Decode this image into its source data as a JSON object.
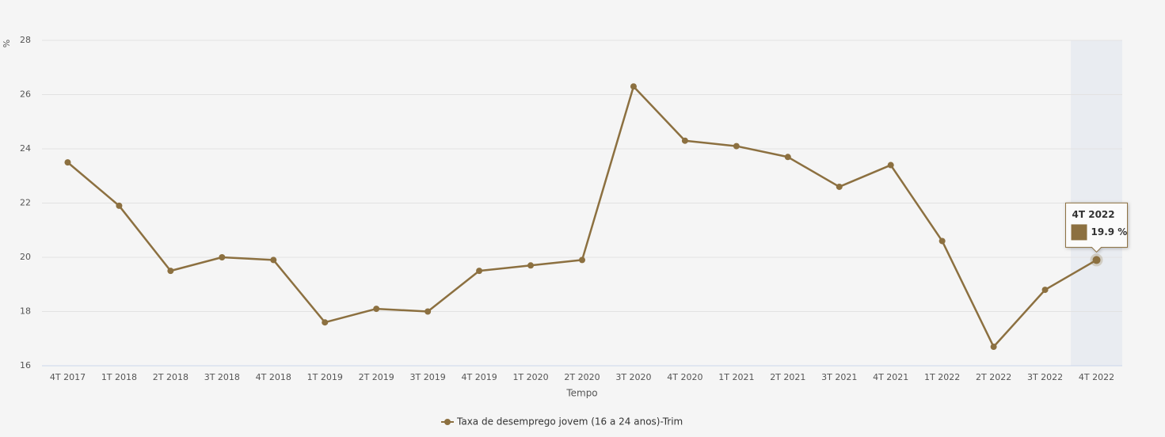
{
  "chart_data": {
    "type": "line",
    "y_label": "%",
    "x_label": "Tempo",
    "categories": [
      "4T 2017",
      "1T 2018",
      "2T 2018",
      "3T 2018",
      "4T 2018",
      "1T 2019",
      "2T 2019",
      "3T 2019",
      "4T 2019",
      "1T 2020",
      "2T 2020",
      "3T 2020",
      "4T 2020",
      "1T 2021",
      "2T 2021",
      "3T 2021",
      "4T 2021",
      "1T 2022",
      "2T 2022",
      "3T 2022",
      "4T 2022"
    ],
    "series": [
      {
        "name": "Taxa de desemprego jovem (16 a 24 anos)-Trim",
        "color": "#8c7040",
        "values": [
          23.5,
          21.9,
          19.5,
          20.0,
          19.9,
          17.6,
          18.1,
          18.0,
          19.5,
          19.7,
          19.9,
          26.3,
          24.3,
          24.1,
          23.7,
          22.6,
          23.4,
          20.6,
          16.7,
          18.8,
          19.9
        ],
        "value_labels": [
          null,
          null,
          null,
          null,
          null,
          null,
          null,
          null,
          null,
          null,
          null,
          null,
          null,
          null,
          null,
          null,
          null,
          null,
          null,
          null,
          "19.9 %"
        ]
      }
    ],
    "ylim": [
      16,
      28
    ],
    "yticks": [
      16,
      18,
      20,
      22,
      24,
      26,
      28
    ],
    "grid": true,
    "legend": "bottom"
  }
}
